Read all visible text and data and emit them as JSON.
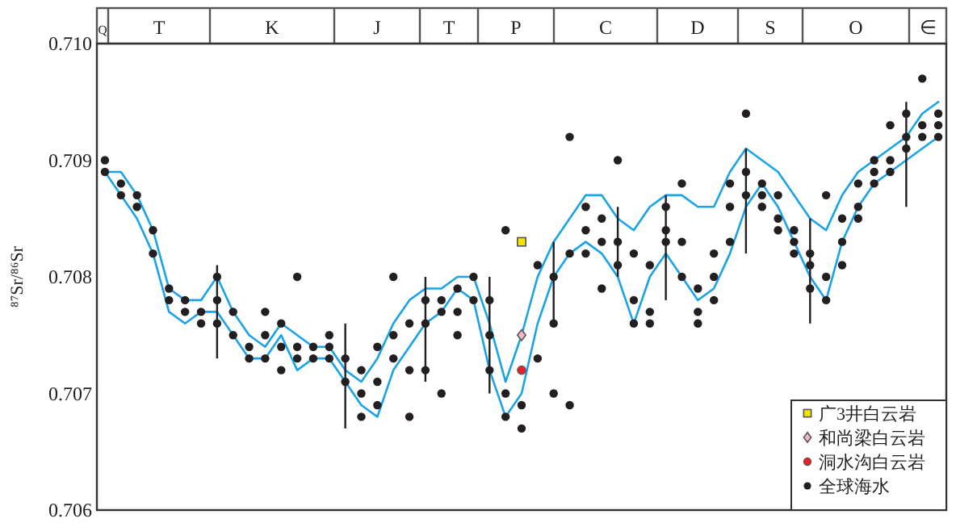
{
  "chart_data": {
    "type": "scatter",
    "ylabel": "⁸⁷Sr/⁸⁶Sr",
    "annotations": [
      "Q",
      "T",
      "K",
      "J",
      "T",
      "P",
      "C",
      "D",
      "S",
      "O",
      "∈"
    ],
    "categories": [
      null,
      null,
      null,
      null,
      null,
      null,
      null,
      null,
      null,
      null,
      null,
      null,
      null,
      null,
      null,
      null,
      null,
      null,
      null,
      null,
      null,
      null,
      null,
      null,
      null,
      null,
      null,
      null,
      null,
      null,
      null,
      null,
      null,
      null,
      null,
      null,
      null,
      null,
      null,
      null,
      null,
      null,
      null,
      null,
      null,
      null,
      null,
      null,
      null,
      null,
      null,
      null,
      null
    ],
    "ylim": [
      0.706,
      0.71
    ],
    "yticks": [
      0.706,
      0.707,
      0.708,
      0.709,
      {
        "value": 0.71,
        "label": "0.710"
      }
    ],
    "tick_labels": "y",
    "grid": false,
    "legend": "bottom right",
    "series": [
      {
        "type": "line",
        "color": "#1aa3e8",
        "marker": "none",
        "values": [
          0.7089,
          0.7089,
          0.7087,
          0.7084,
          0.7079,
          0.7078,
          0.7078,
          0.708,
          0.7077,
          0.7075,
          0.7074,
          0.7076,
          0.7075,
          0.7074,
          0.7074,
          0.7072,
          0.7071,
          0.7073,
          0.7076,
          0.7078,
          0.7079,
          0.7079,
          0.708,
          0.708,
          0.7076,
          0.7071,
          0.7075,
          0.708,
          0.7083,
          0.7085,
          0.7087,
          0.7087,
          0.7085,
          0.7084,
          0.7086,
          0.7087,
          0.7087,
          0.7086,
          0.7086,
          0.7089,
          0.7091,
          0.709,
          0.7089,
          0.7087,
          0.7085,
          0.7084,
          0.7087,
          0.7089,
          0.709,
          0.7091,
          0.7092,
          0.7094,
          0.7095
        ]
      },
      {
        "type": "line",
        "color": "#1aa3e8",
        "marker": "none",
        "values": [
          0.7089,
          0.7087,
          0.7085,
          0.7082,
          0.7077,
          0.7076,
          0.7077,
          0.7077,
          0.7075,
          0.7073,
          0.7073,
          0.7075,
          0.7072,
          0.7073,
          0.7073,
          0.7071,
          0.7069,
          0.7068,
          0.7072,
          0.7074,
          0.7076,
          0.7077,
          0.7079,
          0.7078,
          0.7072,
          0.7068,
          0.707,
          0.7076,
          0.708,
          0.7082,
          0.7083,
          0.7082,
          0.708,
          0.7076,
          0.708,
          0.7082,
          0.708,
          0.7078,
          0.7079,
          0.7082,
          0.7086,
          0.7088,
          0.7086,
          0.7083,
          0.708,
          0.7078,
          0.7083,
          0.7086,
          0.7088,
          0.7089,
          0.709,
          0.7091,
          0.7092
        ]
      },
      {
        "type": "bar",
        "color": "#231f20",
        "base": [
          null,
          null,
          null,
          null,
          null,
          null,
          null,
          0.7073,
          null,
          null,
          null,
          null,
          null,
          null,
          null,
          0.7067,
          null,
          null,
          null,
          null,
          0.7071,
          null,
          null,
          null,
          0.707,
          null,
          null,
          null,
          0.7076,
          null,
          null,
          null,
          0.708,
          null,
          null,
          0.7078,
          null,
          null,
          null,
          null,
          0.7082,
          null,
          null,
          null,
          0.7076,
          null,
          null,
          null,
          null,
          null,
          0.7086,
          null,
          null
        ],
        "values": [
          null,
          null,
          null,
          null,
          null,
          null,
          null,
          0.0008,
          null,
          null,
          null,
          null,
          null,
          null,
          null,
          0.0009,
          null,
          null,
          null,
          null,
          0.0009,
          null,
          null,
          null,
          0.001,
          null,
          null,
          null,
          0.0007,
          null,
          null,
          null,
          0.0006,
          null,
          null,
          0.0009,
          null,
          null,
          null,
          null,
          0.0009,
          null,
          null,
          null,
          0.0009,
          null,
          null,
          null,
          null,
          null,
          0.0009,
          null,
          null
        ]
      },
      {
        "name": "全球海水",
        "color": "#231f20",
        "marker": "circle",
        "values": [
          0.709,
          0.7088,
          0.7087,
          0.7084,
          0.7079,
          0.7077,
          0.7077,
          0.708,
          0.7077,
          0.7074,
          0.7075,
          0.7076,
          0.7073,
          0.7074,
          0.7074,
          0.7073,
          0.707,
          0.7069,
          0.7073,
          0.7076,
          0.7078,
          0.7078,
          0.7079,
          0.708,
          0.7078,
          0.7068,
          0.7067,
          0.7073,
          0.708,
          0.7082,
          0.7086,
          0.7085,
          0.709,
          0.7082,
          0.7081,
          0.7086,
          0.7088,
          0.7079,
          0.7082,
          0.7086,
          0.7089,
          0.7088,
          0.7087,
          0.7084,
          0.7081,
          0.7078,
          0.7081,
          0.7086,
          0.7089,
          0.709,
          0.7091,
          0.7092,
          0.7093
        ]
      },
      {
        "color": "#231f20",
        "marker": "circle",
        "values": [
          0.7089,
          0.7087,
          0.7086,
          0.7082,
          0.7078,
          0.7078,
          0.7076,
          0.7078,
          0.7075,
          0.7073,
          0.7073,
          0.7074,
          0.7074,
          0.7073,
          0.7073,
          0.7071,
          0.7068,
          0.7071,
          0.7075,
          0.7072,
          0.7076,
          0.7077,
          0.7077,
          0.7078,
          0.7075,
          0.707,
          0.7069,
          0.7081,
          0.7076,
          0.7092,
          0.7084,
          0.7083,
          0.7081,
          0.7078,
          0.7077,
          0.7083,
          0.7083,
          0.7077,
          0.7078,
          0.7083,
          0.7087,
          0.7086,
          0.7085,
          0.7082,
          0.7079,
          0.708,
          0.7083,
          0.7085,
          0.7088,
          0.7089,
          0.7092,
          0.7093,
          0.7092
        ]
      },
      {
        "color": "#231f20",
        "marker": "circle",
        "values": [
          null,
          null,
          null,
          null,
          null,
          null,
          null,
          0.7076,
          null,
          null,
          0.7077,
          0.7072,
          0.708,
          null,
          0.7075,
          null,
          0.7072,
          0.7074,
          0.708,
          0.7068,
          0.7072,
          0.707,
          0.7075,
          null,
          0.7072,
          0.7084,
          null,
          null,
          0.707,
          0.7069,
          0.7082,
          0.7079,
          0.7083,
          0.7076,
          0.7076,
          0.7084,
          0.708,
          0.7076,
          0.708,
          0.7088,
          0.7094,
          0.7087,
          0.7084,
          0.7083,
          0.7082,
          0.7087,
          0.7085,
          0.7088,
          0.709,
          0.7093,
          0.7094,
          0.7097,
          0.7094
        ]
      },
      {
        "name": "广3井白云岩",
        "color": "#f2e600",
        "marker": "square",
        "values": [
          null,
          null,
          null,
          null,
          null,
          null,
          null,
          null,
          null,
          null,
          null,
          null,
          null,
          null,
          null,
          null,
          null,
          null,
          null,
          null,
          null,
          null,
          null,
          null,
          null,
          null,
          0.7083,
          null,
          null,
          null,
          null,
          null,
          null,
          null,
          null,
          null,
          null,
          null,
          null,
          null,
          null,
          null,
          null,
          null,
          null,
          null,
          null,
          null,
          null,
          null,
          null,
          null,
          null
        ]
      },
      {
        "name": "和尚梁白云岩",
        "color": "#f4b6c8",
        "marker": "diamond",
        "values": [
          null,
          null,
          null,
          null,
          null,
          null,
          null,
          null,
          null,
          null,
          null,
          null,
          null,
          null,
          null,
          null,
          null,
          null,
          null,
          null,
          null,
          null,
          null,
          null,
          null,
          null,
          0.7075,
          null,
          null,
          null,
          null,
          null,
          null,
          null,
          null,
          null,
          null,
          null,
          null,
          null,
          null,
          null,
          null,
          null,
          null,
          null,
          null,
          null,
          null,
          null,
          null,
          null,
          null
        ]
      },
      {
        "name": "洞水沟白云岩",
        "color": "#e8202a",
        "marker": "circle",
        "values": [
          null,
          null,
          null,
          null,
          null,
          null,
          null,
          null,
          null,
          null,
          null,
          null,
          null,
          null,
          null,
          null,
          null,
          null,
          null,
          null,
          null,
          null,
          null,
          null,
          null,
          null,
          0.7072,
          null,
          null,
          null,
          null,
          null,
          null,
          null,
          null,
          null,
          null,
          null,
          null,
          null,
          null,
          null,
          null,
          null,
          null,
          null,
          null,
          null,
          null,
          null,
          null,
          null,
          null
        ]
      }
    ]
  }
}
